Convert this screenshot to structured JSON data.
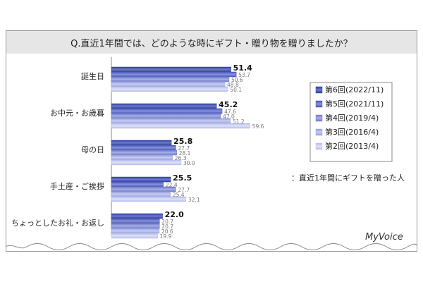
{
  "chart_data": {
    "type": "bar",
    "orientation": "horizontal",
    "title": "Q.直近1年間では、どのような時にギフト・贈り物を贈りましたか？",
    "categories": [
      "誕生日",
      "お中元・お歳暮",
      "母の日",
      "手土産・ご挨拶",
      "ちょっとしたお礼・お返し"
    ],
    "series": [
      {
        "name": "第6回(2022/11)",
        "values": [
          51.4,
          45.2,
          25.8,
          25.5,
          22.0
        ]
      },
      {
        "name": "第5回(2021/11)",
        "values": [
          53.7,
          47.6,
          27.7,
          22.4,
          20.7
        ]
      },
      {
        "name": "第4回(2019/4)",
        "values": [
          50.6,
          47.0,
          28.1,
          27.7,
          20.7
        ]
      },
      {
        "name": "第3回(2016/4)",
        "values": [
          48.8,
          51.2,
          26.3,
          25.4,
          20.6
        ]
      },
      {
        "name": "第2回(2013/4)",
        "values": [
          50.1,
          59.6,
          30.0,
          32.1,
          19.9
        ]
      }
    ],
    "value_labels": [
      [
        "51.4",
        "53.7",
        "50.6",
        "48.8",
        "50.1"
      ],
      [
        "45.2",
        "47.6",
        "47.0",
        "51.2",
        "59.6"
      ],
      [
        "25.8",
        "27.7",
        "28.1",
        "26.3",
        "30.0"
      ],
      [
        "25.5",
        "22.4",
        "27.7",
        "25.4",
        "32.1"
      ],
      [
        "22.0",
        "20.7",
        "20.7",
        "20.6",
        "19.9"
      ]
    ],
    "note": "：直近1年間にギフトを贈った人",
    "grid": false,
    "legend_position": "right",
    "colors": {
      "series": [
        "#3b4aa6",
        "#5563bf",
        "#7b86d2",
        "#a3abe0",
        "#c3c8ec"
      ],
      "title_bg": "#e6e6e6",
      "frame": "#999999"
    }
  },
  "brand": "MyVoice"
}
